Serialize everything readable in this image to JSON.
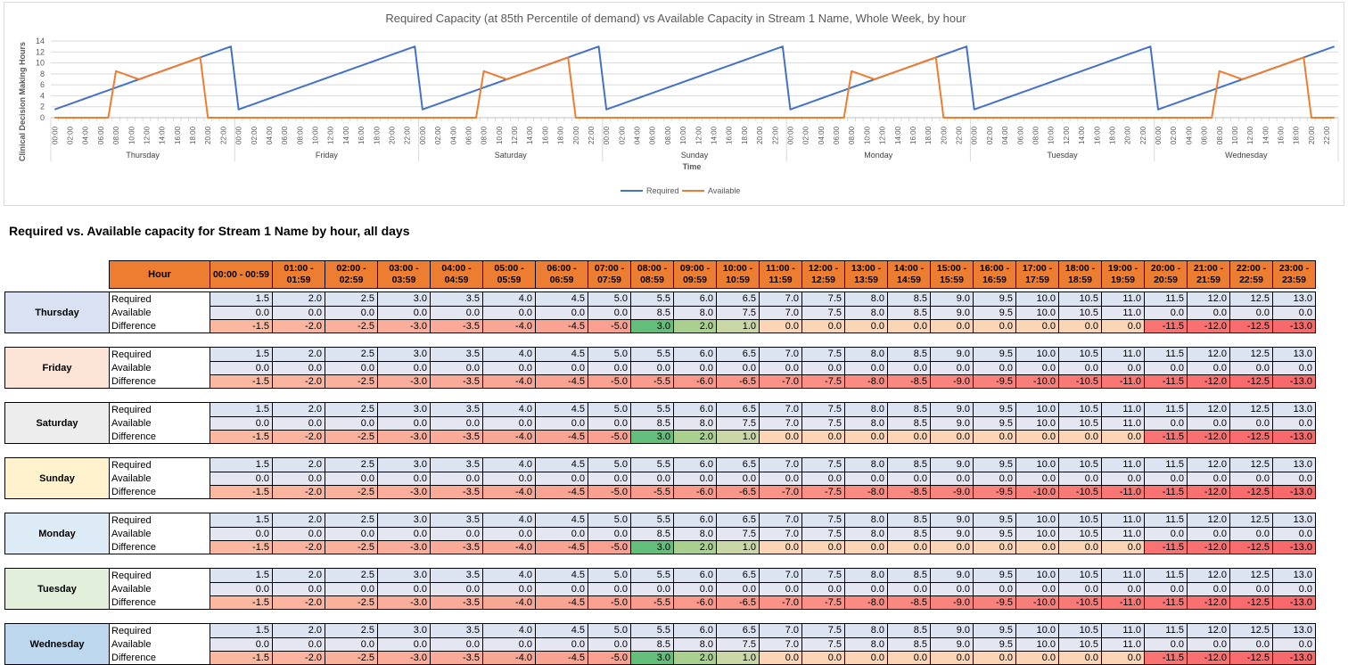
{
  "chart_data": {
    "type": "line",
    "title": "Required Capacity (at 85th Percentile of demand) vs Available Capacity in Stream 1 Name, Whole Week, by hour",
    "xlabel": "Time",
    "ylabel": "Clinical Decision Making Hours",
    "ylim": [
      0,
      14
    ],
    "yticks": [
      0,
      2,
      4,
      6,
      8,
      10,
      12,
      14
    ],
    "x_hour_ticks": [
      "00:00",
      "02:00",
      "04:00",
      "06:00",
      "08:00",
      "10:00",
      "12:00",
      "14:00",
      "16:00",
      "18:00",
      "20:00",
      "22:00"
    ],
    "days": [
      "Thursday",
      "Friday",
      "Saturday",
      "Sunday",
      "Monday",
      "Tuesday",
      "Wednesday"
    ],
    "legend_position": "bottom",
    "series": [
      {
        "name": "Required",
        "color": "#4472C4",
        "values_per_day": {
          "Thursday": [
            1.5,
            2.0,
            2.5,
            3.0,
            3.5,
            4.0,
            4.5,
            5.0,
            5.5,
            6.0,
            6.5,
            7.0,
            7.5,
            8.0,
            8.5,
            9.0,
            9.5,
            10.0,
            10.5,
            11.0,
            11.5,
            12.0,
            12.5,
            13.0
          ],
          "Friday": [
            1.5,
            2.0,
            2.5,
            3.0,
            3.5,
            4.0,
            4.5,
            5.0,
            5.5,
            6.0,
            6.5,
            7.0,
            7.5,
            8.0,
            8.5,
            9.0,
            9.5,
            10.0,
            10.5,
            11.0,
            11.5,
            12.0,
            12.5,
            13.0
          ],
          "Saturday": [
            1.5,
            2.0,
            2.5,
            3.0,
            3.5,
            4.0,
            4.5,
            5.0,
            5.5,
            6.0,
            6.5,
            7.0,
            7.5,
            8.0,
            8.5,
            9.0,
            9.5,
            10.0,
            10.5,
            11.0,
            11.5,
            12.0,
            12.5,
            13.0
          ],
          "Sunday": [
            1.5,
            2.0,
            2.5,
            3.0,
            3.5,
            4.0,
            4.5,
            5.0,
            5.5,
            6.0,
            6.5,
            7.0,
            7.5,
            8.0,
            8.5,
            9.0,
            9.5,
            10.0,
            10.5,
            11.0,
            11.5,
            12.0,
            12.5,
            13.0
          ],
          "Monday": [
            1.5,
            2.0,
            2.5,
            3.0,
            3.5,
            4.0,
            4.5,
            5.0,
            5.5,
            6.0,
            6.5,
            7.0,
            7.5,
            8.0,
            8.5,
            9.0,
            9.5,
            10.0,
            10.5,
            11.0,
            11.5,
            12.0,
            12.5,
            13.0
          ],
          "Tuesday": [
            1.5,
            2.0,
            2.5,
            3.0,
            3.5,
            4.0,
            4.5,
            5.0,
            5.5,
            6.0,
            6.5,
            7.0,
            7.5,
            8.0,
            8.5,
            9.0,
            9.5,
            10.0,
            10.5,
            11.0,
            11.5,
            12.0,
            12.5,
            13.0
          ],
          "Wednesday": [
            1.5,
            2.0,
            2.5,
            3.0,
            3.5,
            4.0,
            4.5,
            5.0,
            5.5,
            6.0,
            6.5,
            7.0,
            7.5,
            8.0,
            8.5,
            9.0,
            9.5,
            10.0,
            10.5,
            11.0,
            11.5,
            12.0,
            12.5,
            13.0
          ]
        }
      },
      {
        "name": "Available",
        "color": "#ED7D31",
        "values_per_day": {
          "Thursday": [
            0.0,
            0.0,
            0.0,
            0.0,
            0.0,
            0.0,
            0.0,
            0.0,
            8.5,
            8.0,
            7.5,
            7.0,
            7.5,
            8.0,
            8.5,
            9.0,
            9.5,
            10.0,
            10.5,
            11.0,
            0.0,
            0.0,
            0.0,
            0.0
          ],
          "Friday": [
            0.0,
            0.0,
            0.0,
            0.0,
            0.0,
            0.0,
            0.0,
            0.0,
            0.0,
            0.0,
            0.0,
            0.0,
            0.0,
            0.0,
            0.0,
            0.0,
            0.0,
            0.0,
            0.0,
            0.0,
            0.0,
            0.0,
            0.0,
            0.0
          ],
          "Saturday": [
            0.0,
            0.0,
            0.0,
            0.0,
            0.0,
            0.0,
            0.0,
            0.0,
            8.5,
            8.0,
            7.5,
            7.0,
            7.5,
            8.0,
            8.5,
            9.0,
            9.5,
            10.0,
            10.5,
            11.0,
            0.0,
            0.0,
            0.0,
            0.0
          ],
          "Sunday": [
            0.0,
            0.0,
            0.0,
            0.0,
            0.0,
            0.0,
            0.0,
            0.0,
            0.0,
            0.0,
            0.0,
            0.0,
            0.0,
            0.0,
            0.0,
            0.0,
            0.0,
            0.0,
            0.0,
            0.0,
            0.0,
            0.0,
            0.0,
            0.0
          ],
          "Monday": [
            0.0,
            0.0,
            0.0,
            0.0,
            0.0,
            0.0,
            0.0,
            0.0,
            8.5,
            8.0,
            7.5,
            7.0,
            7.5,
            8.0,
            8.5,
            9.0,
            9.5,
            10.0,
            10.5,
            11.0,
            0.0,
            0.0,
            0.0,
            0.0
          ],
          "Tuesday": [
            0.0,
            0.0,
            0.0,
            0.0,
            0.0,
            0.0,
            0.0,
            0.0,
            0.0,
            0.0,
            0.0,
            0.0,
            0.0,
            0.0,
            0.0,
            0.0,
            0.0,
            0.0,
            0.0,
            0.0,
            0.0,
            0.0,
            0.0,
            0.0
          ],
          "Wednesday": [
            0.0,
            0.0,
            0.0,
            0.0,
            0.0,
            0.0,
            0.0,
            0.0,
            8.5,
            8.0,
            7.5,
            7.0,
            7.5,
            8.0,
            8.5,
            9.0,
            9.5,
            10.0,
            10.5,
            11.0,
            0.0,
            0.0,
            0.0,
            0.0
          ]
        }
      }
    ]
  },
  "table": {
    "section_title": "Required vs. Available capacity for Stream 1 Name by hour, all days",
    "hour_header": "Hour",
    "hour_columns": [
      "00:00 - 00:59",
      "01:00 - 01:59",
      "02:00 - 02:59",
      "03:00 - 03:59",
      "04:00 - 04:59",
      "05:00 - 05:59",
      "06:00 - 06:59",
      "07:00 - 07:59",
      "08:00 - 08:59",
      "09:00 - 09:59",
      "10:00 - 10:59",
      "11:00 - 11:59",
      "12:00 - 12:59",
      "13:00 - 13:59",
      "14:00 - 14:59",
      "15:00 - 15:59",
      "16:00 - 16:59",
      "17:00 - 17:59",
      "18:00 - 18:59",
      "19:00 - 19:59",
      "20:00 - 20:59",
      "21:00 - 21:59",
      "22:00 - 22:59",
      "23:00 - 23:59"
    ],
    "row_labels": [
      "Required",
      "Available",
      "Difference"
    ],
    "days": [
      {
        "name": "Thursday",
        "color": "#D9E1F2",
        "required": [
          "1.5",
          "2.0",
          "2.5",
          "3.0",
          "3.5",
          "4.0",
          "4.5",
          "5.0",
          "5.5",
          "6.0",
          "6.5",
          "7.0",
          "7.5",
          "8.0",
          "8.5",
          "9.0",
          "9.5",
          "10.0",
          "10.5",
          "11.0",
          "11.5",
          "12.0",
          "12.5",
          "13.0"
        ],
        "available": [
          "0.0",
          "0.0",
          "0.0",
          "0.0",
          "0.0",
          "0.0",
          "0.0",
          "0.0",
          "8.5",
          "8.0",
          "7.5",
          "7.0",
          "7.5",
          "8.0",
          "8.5",
          "9.0",
          "9.5",
          "10.0",
          "10.5",
          "11.0",
          "0.0",
          "0.0",
          "0.0",
          "0.0"
        ],
        "difference": [
          "-1.5",
          "-2.0",
          "-2.5",
          "-3.0",
          "-3.5",
          "-4.0",
          "-4.5",
          "-5.0",
          "3.0",
          "2.0",
          "1.0",
          "0.0",
          "0.0",
          "0.0",
          "0.0",
          "0.0",
          "0.0",
          "0.0",
          "0.0",
          "0.0",
          "-11.5",
          "-12.0",
          "-12.5",
          "-13.0"
        ]
      },
      {
        "name": "Friday",
        "color": "#FCE4D6",
        "required": [
          "1.5",
          "2.0",
          "2.5",
          "3.0",
          "3.5",
          "4.0",
          "4.5",
          "5.0",
          "5.5",
          "6.0",
          "6.5",
          "7.0",
          "7.5",
          "8.0",
          "8.5",
          "9.0",
          "9.5",
          "10.0",
          "10.5",
          "11.0",
          "11.5",
          "12.0",
          "12.5",
          "13.0"
        ],
        "available": [
          "0.0",
          "0.0",
          "0.0",
          "0.0",
          "0.0",
          "0.0",
          "0.0",
          "0.0",
          "0.0",
          "0.0",
          "0.0",
          "0.0",
          "0.0",
          "0.0",
          "0.0",
          "0.0",
          "0.0",
          "0.0",
          "0.0",
          "0.0",
          "0.0",
          "0.0",
          "0.0",
          "0.0"
        ],
        "difference": [
          "-1.5",
          "-2.0",
          "-2.5",
          "-3.0",
          "-3.5",
          "-4.0",
          "-4.5",
          "-5.0",
          "-5.5",
          "-6.0",
          "-6.5",
          "-7.0",
          "-7.5",
          "-8.0",
          "-8.5",
          "-9.0",
          "-9.5",
          "-10.0",
          "-10.5",
          "-11.0",
          "-11.5",
          "-12.0",
          "-12.5",
          "-13.0"
        ]
      },
      {
        "name": "Saturday",
        "color": "#EDEDED",
        "required": [
          "1.5",
          "2.0",
          "2.5",
          "3.0",
          "3.5",
          "4.0",
          "4.5",
          "5.0",
          "5.5",
          "6.0",
          "6.5",
          "7.0",
          "7.5",
          "8.0",
          "8.5",
          "9.0",
          "9.5",
          "10.0",
          "10.5",
          "11.0",
          "11.5",
          "12.0",
          "12.5",
          "13.0"
        ],
        "available": [
          "0.0",
          "0.0",
          "0.0",
          "0.0",
          "0.0",
          "0.0",
          "0.0",
          "0.0",
          "8.5",
          "8.0",
          "7.5",
          "7.0",
          "7.5",
          "8.0",
          "8.5",
          "9.0",
          "9.5",
          "10.0",
          "10.5",
          "11.0",
          "0.0",
          "0.0",
          "0.0",
          "0.0"
        ],
        "difference": [
          "-1.5",
          "-2.0",
          "-2.5",
          "-3.0",
          "-3.5",
          "-4.0",
          "-4.5",
          "-5.0",
          "3.0",
          "2.0",
          "1.0",
          "0.0",
          "0.0",
          "0.0",
          "0.0",
          "0.0",
          "0.0",
          "0.0",
          "0.0",
          "0.0",
          "-11.5",
          "-12.0",
          "-12.5",
          "-13.0"
        ]
      },
      {
        "name": "Sunday",
        "color": "#FFF2CC",
        "required": [
          "1.5",
          "2.0",
          "2.5",
          "3.0",
          "3.5",
          "4.0",
          "4.5",
          "5.0",
          "5.5",
          "6.0",
          "6.5",
          "7.0",
          "7.5",
          "8.0",
          "8.5",
          "9.0",
          "9.5",
          "10.0",
          "10.5",
          "11.0",
          "11.5",
          "12.0",
          "12.5",
          "13.0"
        ],
        "available": [
          "0.0",
          "0.0",
          "0.0",
          "0.0",
          "0.0",
          "0.0",
          "0.0",
          "0.0",
          "0.0",
          "0.0",
          "0.0",
          "0.0",
          "0.0",
          "0.0",
          "0.0",
          "0.0",
          "0.0",
          "0.0",
          "0.0",
          "0.0",
          "0.0",
          "0.0",
          "0.0",
          "0.0"
        ],
        "difference": [
          "-1.5",
          "-2.0",
          "-2.5",
          "-3.0",
          "-3.5",
          "-4.0",
          "-4.5",
          "-5.0",
          "-5.5",
          "-6.0",
          "-6.5",
          "-7.0",
          "-7.5",
          "-8.0",
          "-8.5",
          "-9.0",
          "-9.5",
          "-10.0",
          "-10.5",
          "-11.0",
          "-11.5",
          "-12.0",
          "-12.5",
          "-13.0"
        ]
      },
      {
        "name": "Monday",
        "color": "#DDEBF7",
        "required": [
          "1.5",
          "2.0",
          "2.5",
          "3.0",
          "3.5",
          "4.0",
          "4.5",
          "5.0",
          "5.5",
          "6.0",
          "6.5",
          "7.0",
          "7.5",
          "8.0",
          "8.5",
          "9.0",
          "9.5",
          "10.0",
          "10.5",
          "11.0",
          "11.5",
          "12.0",
          "12.5",
          "13.0"
        ],
        "available": [
          "0.0",
          "0.0",
          "0.0",
          "0.0",
          "0.0",
          "0.0",
          "0.0",
          "0.0",
          "8.5",
          "8.0",
          "7.5",
          "7.0",
          "7.5",
          "8.0",
          "8.5",
          "9.0",
          "9.5",
          "10.0",
          "10.5",
          "11.0",
          "0.0",
          "0.0",
          "0.0",
          "0.0"
        ],
        "difference": [
          "-1.5",
          "-2.0",
          "-2.5",
          "-3.0",
          "-3.5",
          "-4.0",
          "-4.5",
          "-5.0",
          "3.0",
          "2.0",
          "1.0",
          "0.0",
          "0.0",
          "0.0",
          "0.0",
          "0.0",
          "0.0",
          "0.0",
          "0.0",
          "0.0",
          "-11.5",
          "-12.0",
          "-12.5",
          "-13.0"
        ]
      },
      {
        "name": "Tuesday",
        "color": "#E2EFDA",
        "required": [
          "1.5",
          "2.0",
          "2.5",
          "3.0",
          "3.5",
          "4.0",
          "4.5",
          "5.0",
          "5.5",
          "6.0",
          "6.5",
          "7.0",
          "7.5",
          "8.0",
          "8.5",
          "9.0",
          "9.5",
          "10.0",
          "10.5",
          "11.0",
          "11.5",
          "12.0",
          "12.5",
          "13.0"
        ],
        "available": [
          "0.0",
          "0.0",
          "0.0",
          "0.0",
          "0.0",
          "0.0",
          "0.0",
          "0.0",
          "0.0",
          "0.0",
          "0.0",
          "0.0",
          "0.0",
          "0.0",
          "0.0",
          "0.0",
          "0.0",
          "0.0",
          "0.0",
          "0.0",
          "0.0",
          "0.0",
          "0.0",
          "0.0"
        ],
        "difference": [
          "-1.5",
          "-2.0",
          "-2.5",
          "-3.0",
          "-3.5",
          "-4.0",
          "-4.5",
          "-5.0",
          "-5.5",
          "-6.0",
          "-6.5",
          "-7.0",
          "-7.5",
          "-8.0",
          "-8.5",
          "-9.0",
          "-9.5",
          "-10.0",
          "-10.5",
          "-11.0",
          "-11.5",
          "-12.0",
          "-12.5",
          "-13.0"
        ]
      },
      {
        "name": "Wednesday",
        "color": "#BDD7EE",
        "required": [
          "1.5",
          "2.0",
          "2.5",
          "3.0",
          "3.5",
          "4.0",
          "4.5",
          "5.0",
          "5.5",
          "6.0",
          "6.5",
          "7.0",
          "7.5",
          "8.0",
          "8.5",
          "9.0",
          "9.5",
          "10.0",
          "10.5",
          "11.0",
          "11.5",
          "12.0",
          "12.5",
          "13.0"
        ],
        "available": [
          "0.0",
          "0.0",
          "0.0",
          "0.0",
          "0.0",
          "0.0",
          "0.0",
          "0.0",
          "8.5",
          "8.0",
          "7.5",
          "7.0",
          "7.5",
          "8.0",
          "8.5",
          "9.0",
          "9.5",
          "10.0",
          "10.5",
          "11.0",
          "0.0",
          "0.0",
          "0.0",
          "0.0"
        ],
        "difference": [
          "-1.5",
          "-2.0",
          "-2.5",
          "-3.0",
          "-3.5",
          "-4.0",
          "-4.5",
          "-5.0",
          "3.0",
          "2.0",
          "1.0",
          "0.0",
          "0.0",
          "0.0",
          "0.0",
          "0.0",
          "0.0",
          "0.0",
          "0.0",
          "0.0",
          "-11.5",
          "-12.0",
          "-12.5",
          "-13.0"
        ]
      }
    ],
    "colors": {
      "header": "#ED7D31",
      "required_fill": "#DCE3F1",
      "available_fill": "#E4E7F2",
      "positive_high": "#63BE7B",
      "positive_mid": "#A9D08E",
      "positive_low": "#C9D7A7",
      "zero_fill": "#FBD5B5",
      "negative_max": "#F8696B",
      "negative_light": "#FAC2A8"
    }
  }
}
